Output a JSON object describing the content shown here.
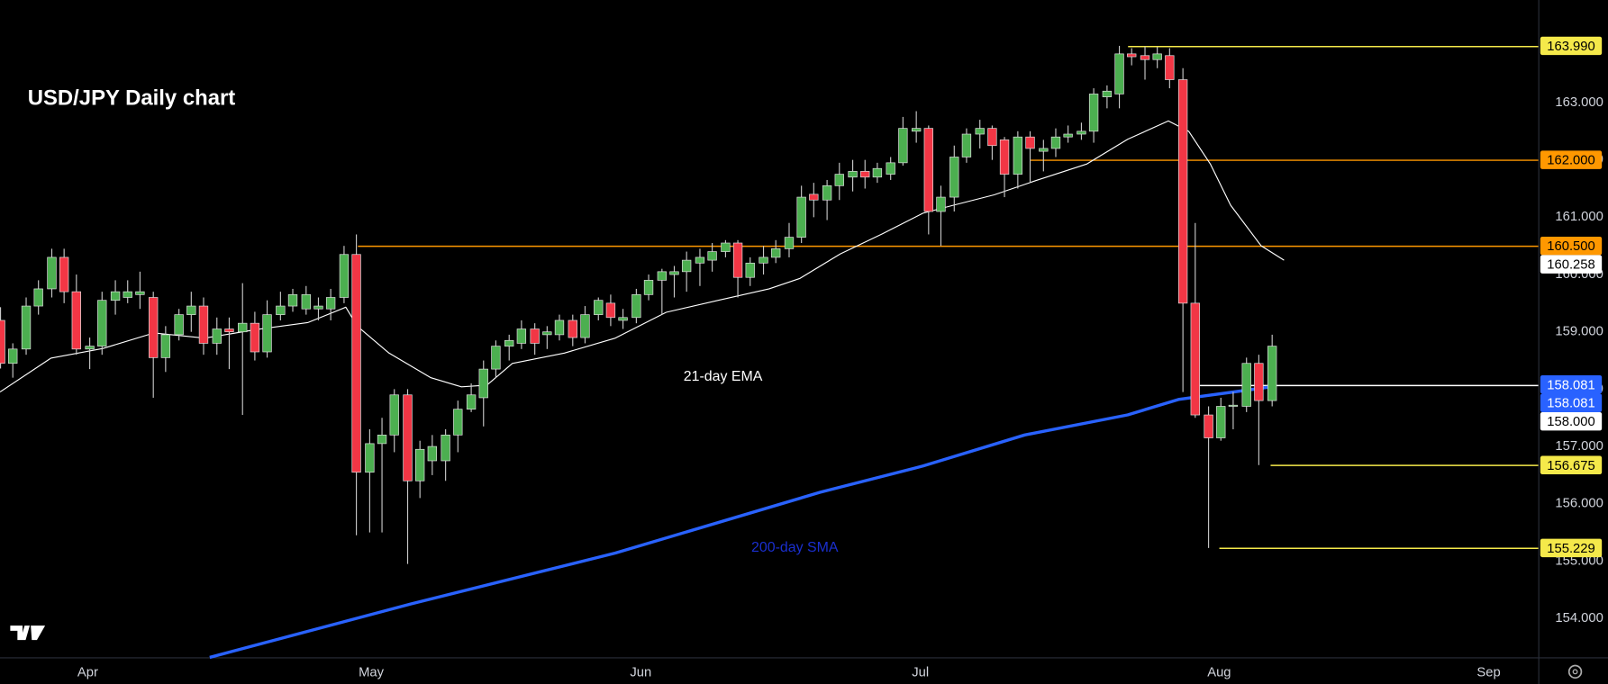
{
  "chart_data": {
    "type": "candlestick",
    "title": "USD/JPY Daily chart",
    "up_color": "#4caf50",
    "down_color": "#f23645",
    "wick_color": "#c8c8c8",
    "candles": {
      "open": [
        159.2,
        158.45,
        158.7,
        159.45,
        159.75,
        160.3,
        159.7,
        158.7,
        158.75,
        159.55,
        159.6,
        159.65,
        159.6,
        158.55,
        158.95,
        159.3,
        159.45,
        158.8,
        159.05,
        159.0,
        159.15,
        158.65,
        159.3,
        159.45,
        159.4,
        159.4,
        159.4,
        159.6,
        160.35,
        156.55,
        157.05,
        157.2,
        157.9,
        156.4,
        156.75,
        156.75,
        157.2,
        157.65,
        157.85,
        158.35,
        158.75,
        158.8,
        159.05,
        158.95,
        158.95,
        159.2,
        158.9,
        159.3,
        159.5,
        159.2,
        159.25,
        159.65,
        159.9,
        160.0,
        160.05,
        160.2,
        160.25,
        160.4,
        160.55,
        159.95,
        160.2,
        160.3,
        160.45,
        160.65,
        161.4,
        161.3,
        161.55,
        161.7,
        161.8,
        161.7,
        161.75,
        161.95,
        162.5,
        162.55,
        161.1,
        161.35,
        162.05,
        162.45,
        162.55,
        162.35,
        161.75,
        162.4,
        162.15,
        162.2,
        162.4,
        162.45,
        162.5,
        163.1,
        163.15,
        163.85,
        163.82,
        163.75,
        163.82,
        163.4,
        159.5,
        157.55,
        157.15,
        157.7,
        157.7,
        158.45,
        157.8
      ],
      "high": [
        159.43,
        158.8,
        159.6,
        159.9,
        160.45,
        160.45,
        160.0,
        158.9,
        159.7,
        159.9,
        159.9,
        160.05,
        159.7,
        159.1,
        159.4,
        159.7,
        159.6,
        159.25,
        159.25,
        159.85,
        159.35,
        159.55,
        159.7,
        159.75,
        159.8,
        159.6,
        159.75,
        160.5,
        160.7,
        157.3,
        157.5,
        158.0,
        158.0,
        157.1,
        157.2,
        157.3,
        157.8,
        158.1,
        158.5,
        158.85,
        158.95,
        159.2,
        159.15,
        159.1,
        159.3,
        159.3,
        159.45,
        159.6,
        159.65,
        159.4,
        159.75,
        160.0,
        160.1,
        160.15,
        160.4,
        160.45,
        160.55,
        160.6,
        160.6,
        160.3,
        160.5,
        160.6,
        160.9,
        161.55,
        161.6,
        161.65,
        161.95,
        162.0,
        162.0,
        161.95,
        162.05,
        162.75,
        162.85,
        162.6,
        161.55,
        162.25,
        162.55,
        162.7,
        162.6,
        162.4,
        162.5,
        162.5,
        162.35,
        162.55,
        162.6,
        162.65,
        163.25,
        163.3,
        163.99,
        163.95,
        163.98,
        163.97,
        163.95,
        163.6,
        160.9,
        157.7,
        157.85,
        157.95,
        158.55,
        158.6,
        158.95
      ],
      "low": [
        158.36,
        158.2,
        158.6,
        159.3,
        159.6,
        159.5,
        158.6,
        158.35,
        158.6,
        159.3,
        159.5,
        159.4,
        157.85,
        158.3,
        158.85,
        159.0,
        158.6,
        158.6,
        158.35,
        157.55,
        158.5,
        158.55,
        159.2,
        159.35,
        159.3,
        159.2,
        159.2,
        159.5,
        155.45,
        155.5,
        155.5,
        156.9,
        154.95,
        156.1,
        156.5,
        156.4,
        156.9,
        157.6,
        157.35,
        158.2,
        158.5,
        158.7,
        158.6,
        158.7,
        158.85,
        158.75,
        158.8,
        159.2,
        159.1,
        159.05,
        159.15,
        159.55,
        159.3,
        159.6,
        159.7,
        159.8,
        160.05,
        160.3,
        159.6,
        159.8,
        160.0,
        160.2,
        160.3,
        160.55,
        161.0,
        160.95,
        161.3,
        161.45,
        161.5,
        161.6,
        161.65,
        161.9,
        162.3,
        160.7,
        160.5,
        161.1,
        161.95,
        162.2,
        162.0,
        161.35,
        161.5,
        161.6,
        161.8,
        162.05,
        162.3,
        162.35,
        162.3,
        162.9,
        162.9,
        163.65,
        163.4,
        163.6,
        163.25,
        157.95,
        157.5,
        155.229,
        157.1,
        157.3,
        157.6,
        156.675,
        157.7
      ],
      "close": [
        158.45,
        158.7,
        159.45,
        159.75,
        160.3,
        159.7,
        158.7,
        158.75,
        159.55,
        159.7,
        159.7,
        159.7,
        158.55,
        158.95,
        159.3,
        159.45,
        158.8,
        159.05,
        159.0,
        159.15,
        158.65,
        159.3,
        159.45,
        159.65,
        159.65,
        159.45,
        159.6,
        160.35,
        156.55,
        157.05,
        157.2,
        157.9,
        156.4,
        156.95,
        157.0,
        157.2,
        157.65,
        157.9,
        158.35,
        158.75,
        158.85,
        159.05,
        158.8,
        159.0,
        159.2,
        158.9,
        159.3,
        159.55,
        159.25,
        159.25,
        159.65,
        159.9,
        160.05,
        160.05,
        160.25,
        160.3,
        160.4,
        160.55,
        159.95,
        160.2,
        160.3,
        160.45,
        160.65,
        161.35,
        161.3,
        161.55,
        161.75,
        161.8,
        161.7,
        161.85,
        161.95,
        162.55,
        162.55,
        161.1,
        161.35,
        162.05,
        162.45,
        162.55,
        162.25,
        161.75,
        162.4,
        162.2,
        162.2,
        162.4,
        162.45,
        162.5,
        163.15,
        163.2,
        163.85,
        163.8,
        163.75,
        163.85,
        163.4,
        159.5,
        157.55,
        157.15,
        157.7,
        157.72,
        158.45,
        157.8,
        158.75
      ]
    },
    "lines": [
      {
        "name": "21-day EMA",
        "color": "#ffffff",
        "width": 1,
        "x": [
          0,
          4.0,
          8.1,
          12.1,
          16.1,
          20.2,
          24.2,
          27.2,
          28.1,
          30.6,
          33.9,
          36.3,
          38.3,
          40.3,
          44.4,
          48.4,
          52.4,
          56.5,
          60.5,
          62.9,
          66.1,
          69.4,
          72.6,
          75.0,
          78.2,
          81.5,
          85.5,
          88.7,
          91.9,
          93.5,
          95.2,
          96.8,
          99.2,
          101.0
        ],
        "values": [
          157.95,
          158.54,
          158.71,
          158.98,
          158.89,
          159.04,
          159.16,
          159.43,
          159.1,
          158.63,
          158.2,
          158.04,
          158.07,
          158.45,
          158.63,
          158.89,
          159.34,
          159.55,
          159.75,
          159.93,
          160.36,
          160.71,
          161.07,
          161.21,
          161.39,
          161.64,
          161.93,
          162.36,
          162.68,
          162.5,
          161.93,
          161.21,
          160.5,
          160.25
        ]
      },
      {
        "name": "200-day SMA",
        "color": "#2962ff",
        "label_color": "#1a2fd0",
        "width": 3,
        "x": [
          16.5,
          32.3,
          48.4,
          64.5,
          72.6,
          80.6,
          88.7,
          92.7,
          100.0
        ],
        "values": [
          153.32,
          154.25,
          155.14,
          156.2,
          156.66,
          157.2,
          157.55,
          157.82,
          158.04
        ]
      }
    ],
    "levels": [
      {
        "value": 163.99,
        "label": "163.990",
        "color": "#f5e94a",
        "line_color": "#f5e94a",
        "line": true
      },
      {
        "value": 162.0,
        "label": "162.000",
        "color": "#ff9800",
        "line_color": "#ff9800",
        "line": true
      },
      {
        "value": 160.5,
        "label": "160.500",
        "color": "#ff9800",
        "line_color": "#ff9800",
        "line": true
      },
      {
        "value": 160.258,
        "label": "160.258",
        "color": "#ffffff",
        "line_color": "#ffffff",
        "line": false
      },
      {
        "value": 158.081,
        "label": "158.081",
        "color": "#2962ff",
        "line_color": "#ffffff",
        "line": true
      },
      {
        "value": 158.081,
        "label": "158.081",
        "color": "#2962ff",
        "line_color": "#2962ff",
        "line": false
      },
      {
        "value": 158.0,
        "label": "158.000",
        "color": "#ffffff",
        "line_color": "#ffffff",
        "line": false
      },
      {
        "value": 156.675,
        "label": "156.675",
        "color": "#f5e94a",
        "line_color": "#f5e94a",
        "line": true
      },
      {
        "value": 155.229,
        "label": "155.229",
        "color": "#f5e94a",
        "line_color": "#f5e94a",
        "line": true
      }
    ],
    "xlim": [
      0,
      121
    ],
    "xticks": [
      {
        "value": 6.9,
        "label": "Apr"
      },
      {
        "value": 29.2,
        "label": "May"
      },
      {
        "value": 50.4,
        "label": "Jun"
      },
      {
        "value": 72.4,
        "label": "Jul"
      },
      {
        "value": 95.9,
        "label": "Aug"
      },
      {
        "value": 117.1,
        "label": "Sep"
      }
    ],
    "ylim": [
      153.32,
      164.79
    ],
    "yticks": [
      {
        "value": 154,
        "label": "154.000"
      },
      {
        "value": 155,
        "label": "155.000"
      },
      {
        "value": 156,
        "label": "156.000"
      },
      {
        "value": 157,
        "label": "157.000"
      },
      {
        "value": 158,
        "label": "158.000"
      },
      {
        "value": 159,
        "label": "159.000"
      },
      {
        "value": 160,
        "label": "160.000"
      },
      {
        "value": 161,
        "label": "161.000"
      },
      {
        "value": 162,
        "label": "162.000"
      },
      {
        "value": 163,
        "label": "163.000"
      }
    ]
  }
}
